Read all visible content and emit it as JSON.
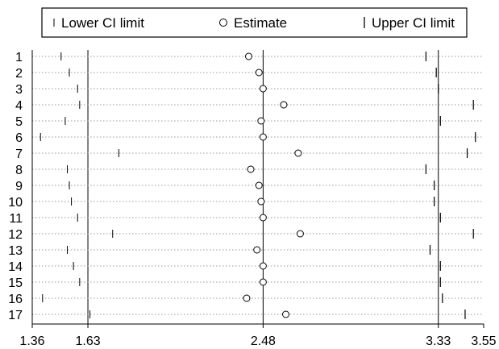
{
  "chart_data": {
    "type": "scatter",
    "title": "",
    "xlabel": "",
    "ylabel": "",
    "xlim": [
      1.36,
      3.55
    ],
    "x_ticks": [
      "1.36",
      "1.63",
      "2.48",
      "3.33",
      "3.55"
    ],
    "reference_lines": [
      1.63,
      2.48,
      3.33
    ],
    "legend": {
      "placement": "top",
      "items": [
        {
          "label": "Lower CI limit",
          "marker": "tick-short"
        },
        {
          "label": "Estimate",
          "marker": "circle"
        },
        {
          "label": "Upper CI limit",
          "marker": "tick"
        }
      ]
    },
    "categories": [
      "1",
      "2",
      "3",
      "4",
      "5",
      "6",
      "7",
      "8",
      "9",
      "10",
      "11",
      "12",
      "13",
      "14",
      "15",
      "16",
      "17"
    ],
    "series": [
      {
        "name": "Lower CI limit",
        "values": [
          1.5,
          1.54,
          1.58,
          1.59,
          1.52,
          1.4,
          1.78,
          1.53,
          1.54,
          1.55,
          1.58,
          1.75,
          1.53,
          1.56,
          1.59,
          1.41,
          1.64
        ]
      },
      {
        "name": "Estimate",
        "values": [
          2.41,
          2.46,
          2.48,
          2.58,
          2.47,
          2.48,
          2.65,
          2.42,
          2.46,
          2.47,
          2.48,
          2.66,
          2.45,
          2.48,
          2.48,
          2.4,
          2.59
        ]
      },
      {
        "name": "Upper CI limit",
        "values": [
          3.27,
          3.32,
          3.33,
          3.5,
          3.34,
          3.51,
          3.47,
          3.27,
          3.31,
          3.31,
          3.34,
          3.5,
          3.29,
          3.34,
          3.34,
          3.35,
          3.46
        ]
      }
    ]
  }
}
